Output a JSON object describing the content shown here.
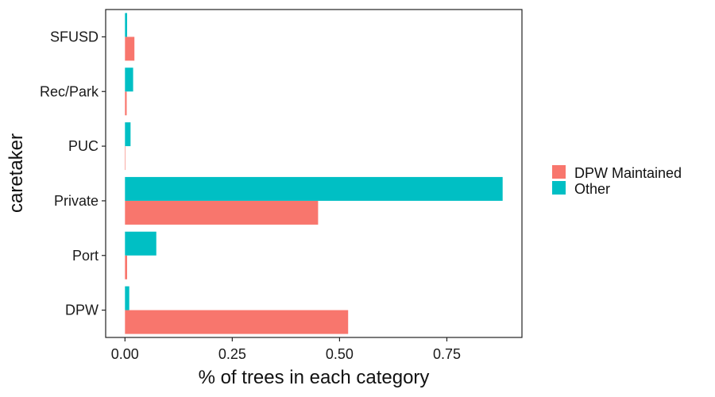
{
  "chart_data": {
    "type": "bar",
    "orientation": "horizontal",
    "title": "",
    "xlabel": "% of trees in each category",
    "ylabel": "caretaker",
    "categories": [
      "DPW",
      "Port",
      "Private",
      "PUC",
      "Rec/Park",
      "SFUSD"
    ],
    "series": [
      {
        "name": "DPW Maintained",
        "color": "#F8766D",
        "values": [
          0.52,
          0.005,
          0.45,
          0.001,
          0.004,
          0.022
        ]
      },
      {
        "name": "Other",
        "color": "#00BFC4",
        "values": [
          0.01,
          0.073,
          0.88,
          0.013,
          0.019,
          0.005
        ]
      }
    ],
    "xlim": [
      -0.045,
      0.925
    ],
    "xticks": [
      0.0,
      0.25,
      0.5,
      0.75
    ],
    "xtick_labels": [
      "0.00",
      "0.25",
      "0.50",
      "0.75"
    ],
    "grid": false,
    "legend_position": "right"
  }
}
